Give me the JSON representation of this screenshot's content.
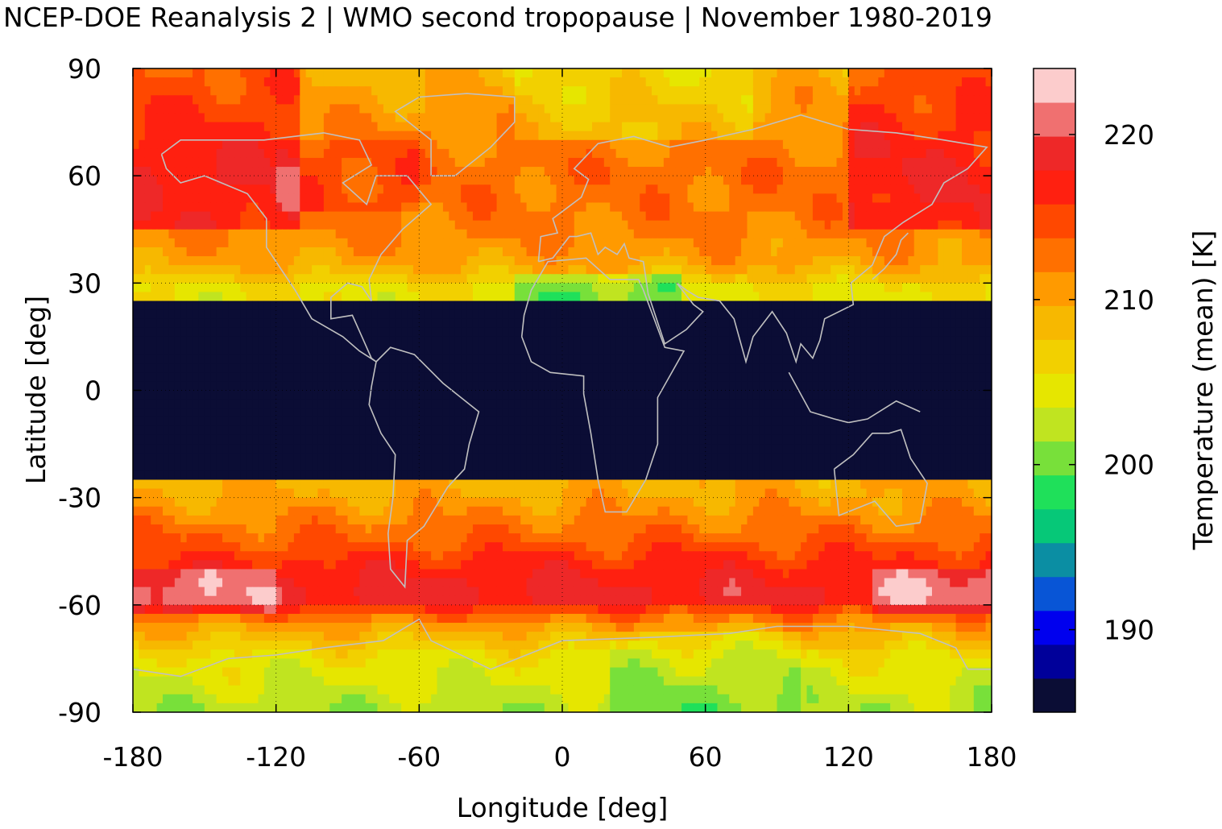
{
  "title": "NCEP-DOE Reanalysis 2 | WMO second tropopause | November 1980-2019",
  "chart_data": {
    "type": "heatmap",
    "xlabel": "Longitude [deg]",
    "ylabel": "Latitude [deg]",
    "xlim": [
      -180,
      180
    ],
    "ylim": [
      -90,
      90
    ],
    "xticks": [
      "-180",
      "-120",
      "-60",
      "0",
      "60",
      "120",
      "180"
    ],
    "yticks": [
      "90",
      "60",
      "30",
      "0",
      "-30",
      "-60",
      "-90"
    ],
    "grid": true,
    "colorbar": {
      "label": "Temperature (mean) [K]",
      "range": [
        185,
        224
      ],
      "ticks": [
        "190",
        "200",
        "210",
        "220"
      ],
      "bin_colors": [
        "#0b0d35",
        "#00009a",
        "#0000ee",
        "#0855d6",
        "#0b8ea3",
        "#06c878",
        "#1fe05a",
        "#78e03a",
        "#c0e420",
        "#e6e600",
        "#f2d000",
        "#f7b800",
        "#ff9a00",
        "#ff7000",
        "#ff4800",
        "#ff2010",
        "#ee2828",
        "#f07070",
        "#fccccc"
      ]
    },
    "missing_value_color": "#0b0d35",
    "zonal_mean_profile_K": [
      {
        "lat": 90,
        "value": 209
      },
      {
        "lat": 75,
        "value": 211
      },
      {
        "lat": 60,
        "value": 213
      },
      {
        "lat": 45,
        "value": 212
      },
      {
        "lat": 35,
        "value": 210
      },
      {
        "lat": 28,
        "value": 205
      },
      {
        "lat": -24,
        "value": 209
      },
      {
        "lat": -30,
        "value": 210
      },
      {
        "lat": -40,
        "value": 213
      },
      {
        "lat": -50,
        "value": 217
      },
      {
        "lat": -58,
        "value": 219
      },
      {
        "lat": -65,
        "value": 211
      },
      {
        "lat": -75,
        "value": 205
      },
      {
        "lat": -90,
        "value": 202
      }
    ],
    "no_data_tropical_band_lat": [
      -25,
      25
    ]
  }
}
